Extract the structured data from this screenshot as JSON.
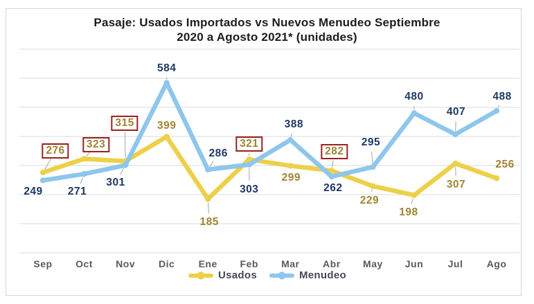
{
  "title": {
    "line1": "Pasaje: Usados Importados  vs Nuevos Menudeo  Septiembre",
    "line2": "2020 a Agosto 2021* (unidades)",
    "color": "#1C1C1C"
  },
  "chart_data": {
    "type": "line",
    "categories": [
      "Sep",
      "Oct",
      "Nov",
      "Dic",
      "Ene",
      "Feb",
      "Mar",
      "Abr",
      "May",
      "Jun",
      "Jul",
      "Ago"
    ],
    "series": [
      {
        "name": "Usados",
        "color": "#EDD049",
        "label_color": "#A08433",
        "values": [
          276,
          323,
          315,
          399,
          185,
          321,
          299,
          282,
          229,
          198,
          307,
          256
        ],
        "boxed": [
          true,
          true,
          true,
          false,
          false,
          true,
          false,
          true,
          false,
          false,
          false,
          false
        ]
      },
      {
        "name": "Menudeo",
        "color": "#8EC6EC",
        "label_color": "#1F3864",
        "values": [
          249,
          271,
          301,
          584,
          286,
          303,
          388,
          262,
          295,
          480,
          407,
          488
        ],
        "boxed": [
          false,
          false,
          false,
          false,
          false,
          false,
          false,
          false,
          false,
          false,
          false,
          false
        ]
      }
    ],
    "ylim": [
      0,
      700
    ],
    "grid": true,
    "grid_step": 100,
    "gridline_color": "#D9D9D9",
    "highlight_box_color": "#9A2020",
    "leader_line_color": "#A6A6A6",
    "axis_label_color": "#595959",
    "legend_position": "bottom-center",
    "legend_text_color": "#44485A"
  }
}
